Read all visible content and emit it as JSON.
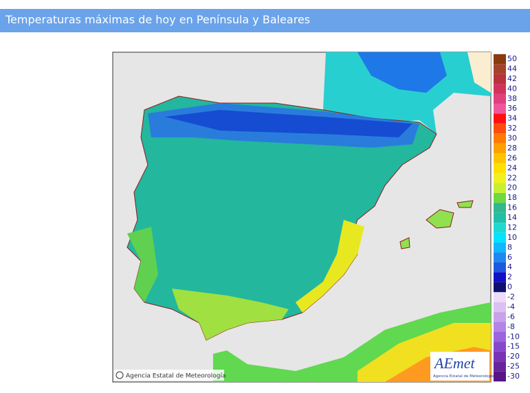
{
  "header": {
    "title": "Temperaturas máximas de hoy en Península y Baleares"
  },
  "map": {
    "credit": "Agencia Estatal de Meteorología",
    "logo": {
      "text": "AEmet",
      "subtitle": "Agencia Estatal de Meteorología"
    }
  },
  "legend": {
    "items": [
      {
        "value": 50,
        "color": "#8b3a10"
      },
      {
        "value": 44,
        "color": "#a2432a"
      },
      {
        "value": 42,
        "color": "#b8333a"
      },
      {
        "value": 40,
        "color": "#d0345c"
      },
      {
        "value": 38,
        "color": "#e0407e"
      },
      {
        "value": 36,
        "color": "#f0569e"
      },
      {
        "value": 34,
        "color": "#ff1010"
      },
      {
        "value": 32,
        "color": "#ff4a10"
      },
      {
        "value": 30,
        "color": "#ff7a00"
      },
      {
        "value": 28,
        "color": "#ffa000"
      },
      {
        "value": 26,
        "color": "#ffc400"
      },
      {
        "value": 24,
        "color": "#ffe000"
      },
      {
        "value": 22,
        "color": "#f0f020"
      },
      {
        "value": 20,
        "color": "#c8f030"
      },
      {
        "value": 18,
        "color": "#70d840"
      },
      {
        "value": 16,
        "color": "#30b890"
      },
      {
        "value": 14,
        "color": "#20c0a8"
      },
      {
        "value": 12,
        "color": "#20d8d0"
      },
      {
        "value": 10,
        "color": "#00e4ff"
      },
      {
        "value": 8,
        "color": "#10b8ff"
      },
      {
        "value": 6,
        "color": "#1e88f0"
      },
      {
        "value": 4,
        "color": "#1e58e0"
      },
      {
        "value": 2,
        "color": "#1010c8"
      },
      {
        "value": 0,
        "color": "#101070"
      },
      {
        "value": -2,
        "color": "#ecdcf8"
      },
      {
        "value": -4,
        "color": "#dcc0f2"
      },
      {
        "value": -6,
        "color": "#c8a2ec"
      },
      {
        "value": -8,
        "color": "#b484e6"
      },
      {
        "value": -10,
        "color": "#9c64de"
      },
      {
        "value": -15,
        "color": "#8848cc"
      },
      {
        "value": -20,
        "color": "#7834b4"
      },
      {
        "value": -25,
        "color": "#68249c"
      },
      {
        "value": -30,
        "color": "#581486"
      }
    ]
  }
}
